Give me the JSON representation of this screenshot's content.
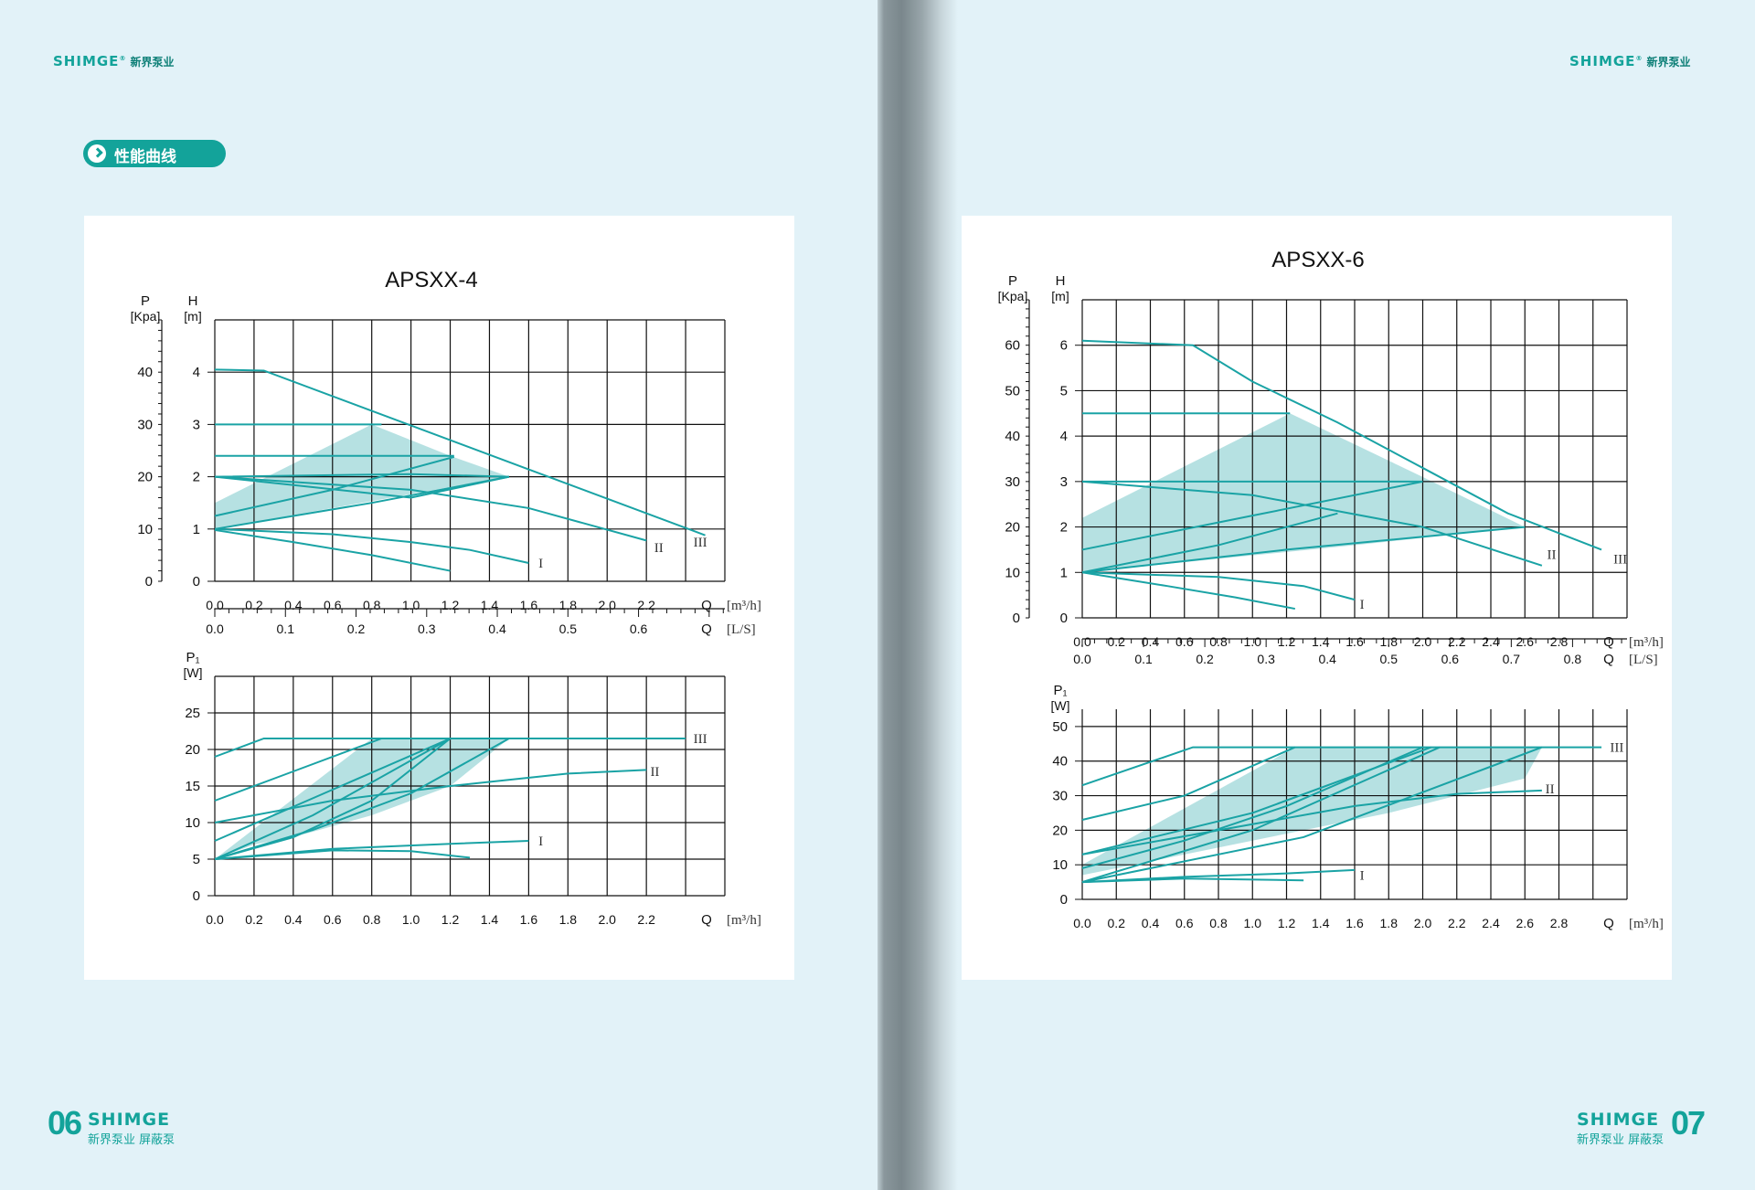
{
  "header": {
    "brand": "SHIMGE",
    "brand_cn": "新界泵业"
  },
  "section_title": "性能曲线",
  "footer": {
    "left_page_number": "06",
    "right_page_number": "07",
    "brand": "SHIMGE",
    "sub": "新界泵业 屏蔽泵"
  },
  "colors": {
    "curve": "#1aa3a5",
    "fill": "#a9dcdd",
    "grid": "#111111",
    "page_bg": "#e2f2f8"
  },
  "chart_data": [
    {
      "type": "line",
      "title": "APSXX-4",
      "head_chart": {
        "y_left_label": "P",
        "y_left_unit": "[Kpa]",
        "y_left_ticks": [
          "0",
          "10",
          "20",
          "30",
          "40"
        ],
        "y_label": "H",
        "y_unit": "[m]",
        "ylim": [
          0,
          5
        ],
        "y_ticks": [
          "0",
          "1",
          "2",
          "3",
          "4"
        ],
        "xlim": [
          0,
          2.6
        ],
        "x_ticks": [
          "0.0",
          "0.2",
          "0.4",
          "0.6",
          "0.8",
          "1.0",
          "1.2",
          "1.4",
          "1.6",
          "1.8",
          "2.0",
          "2.2"
        ],
        "x_label": "Q",
        "x_unit": "[m³/h]",
        "x2_ticks": [
          "0.0",
          "0.1",
          "0.2",
          "0.3",
          "0.4",
          "0.5",
          "0.6"
        ],
        "x2_label": "Q",
        "x2_unit": "[L/S]",
        "speed_labels": [
          {
            "text": "I",
            "x": 1.65,
            "y": 0.35
          },
          {
            "text": "II",
            "x": 2.24,
            "y": 0.65
          },
          {
            "text": "III",
            "x": 2.44,
            "y": 0.75
          }
        ],
        "series": [
          {
            "name": "III",
            "x": [
              0,
              0.25,
              2.5
            ],
            "y": [
              4.05,
              4.03,
              0.88
            ]
          },
          {
            "name": "II",
            "x": [
              0,
              1.0,
              1.6,
              2.2
            ],
            "y": [
              2.0,
              1.75,
              1.4,
              0.78
            ]
          },
          {
            "name": "I",
            "x": [
              0,
              0.6,
              1.0,
              1.3,
              1.6
            ],
            "y": [
              1.0,
              0.9,
              0.75,
              0.6,
              0.35
            ]
          },
          {
            "x": [
              0,
              0.4,
              0.8,
              1.2
            ],
            "y": [
              0.98,
              0.75,
              0.5,
              0.2
            ]
          },
          {
            "x": [
              0,
              0.85
            ],
            "y": [
              3.0,
              3.0
            ]
          },
          {
            "x": [
              0,
              1.22
            ],
            "y": [
              2.4,
              2.4
            ]
          },
          {
            "x": [
              0,
              1.0,
              1.5
            ],
            "y": [
              2.0,
              2.05,
              2.0
            ]
          },
          {
            "x": [
              0,
              0.6,
              1.22
            ],
            "y": [
              1.25,
              1.75,
              2.38
            ]
          },
          {
            "x": [
              0,
              0.8,
              1.5
            ],
            "y": [
              1.0,
              1.5,
              2.0
            ]
          },
          {
            "x": [
              0,
              0.5,
              1.0,
              1.5
            ],
            "y": [
              2.0,
              1.8,
              1.6,
              2.0
            ]
          }
        ],
        "area": {
          "x": [
            0,
            0.8,
            1.2,
            1.5,
            1.2,
            0.6,
            0
          ],
          "y": [
            1.5,
            3.0,
            2.4,
            2.0,
            1.8,
            1.4,
            1.0
          ]
        }
      },
      "power_chart": {
        "y_label": "P₁",
        "y_unit": "[W]",
        "ylim": [
          0,
          30
        ],
        "y_ticks": [
          "0",
          "5",
          "10",
          "15",
          "20",
          "25"
        ],
        "xlim": [
          0,
          2.6
        ],
        "x_ticks": [
          "0.0",
          "0.2",
          "0.4",
          "0.6",
          "0.8",
          "1.0",
          "1.2",
          "1.4",
          "1.6",
          "1.8",
          "2.0",
          "2.2"
        ],
        "x_label": "Q",
        "x_unit": "[m³/h]",
        "speed_labels": [
          {
            "text": "III",
            "x": 2.44,
            "y": 21.5
          },
          {
            "text": "II",
            "x": 2.22,
            "y": 17.0
          },
          {
            "text": "I",
            "x": 1.65,
            "y": 7.5
          }
        ],
        "series": [
          {
            "name": "III",
            "x": [
              0,
              0.25,
              2.4
            ],
            "y": [
              19,
              21.5,
              21.5
            ]
          },
          {
            "name": "II",
            "x": [
              0,
              0.6,
              1.2,
              1.8,
              2.2
            ],
            "y": [
              10,
              13.0,
              15.0,
              16.7,
              17.2
            ]
          },
          {
            "name": "I",
            "x": [
              0,
              0.6,
              1.2,
              1.6
            ],
            "y": [
              5,
              6.4,
              7.1,
              7.5
            ]
          },
          {
            "x": [
              0,
              0.6,
              1.0,
              1.3
            ],
            "y": [
              5,
              6.2,
              6.1,
              5.2
            ]
          },
          {
            "x": [
              0,
              0.4,
              0.85
            ],
            "y": [
              13,
              17,
              21.5
            ]
          },
          {
            "x": [
              0,
              0.6,
              1.2
            ],
            "y": [
              7.5,
              14.5,
              21.5
            ]
          },
          {
            "x": [
              0,
              0.5,
              1.0,
              1.5
            ],
            "y": [
              5,
              9,
              14,
              21.5
            ]
          },
          {
            "x": [
              0,
              0.4,
              0.8,
              1.2
            ],
            "y": [
              5,
              8,
              13,
              21.5
            ]
          },
          {
            "x": [
              0,
              0.5,
              1.2
            ],
            "y": [
              5,
              11,
              21.5
            ]
          }
        ],
        "area": {
          "x": [
            0,
            0.8,
            1.5,
            1.2,
            0.8,
            0.4,
            0.2,
            0
          ],
          "y": [
            5,
            21.5,
            21.5,
            15,
            11,
            8,
            7,
            5
          ]
        }
      }
    },
    {
      "type": "line",
      "title": "APSXX-6",
      "head_chart": {
        "y_left_label": "P",
        "y_left_unit": "[Kpa]",
        "y_left_ticks": [
          "0",
          "10",
          "20",
          "30",
          "40",
          "50",
          "60"
        ],
        "y_label": "H",
        "y_unit": "[m]",
        "ylim": [
          0,
          7
        ],
        "y_ticks": [
          "0",
          "1",
          "2",
          "3",
          "4",
          "5",
          "6"
        ],
        "xlim": [
          0,
          3.2
        ],
        "x_ticks": [
          "0.0",
          "0.2",
          "0.4",
          "0.6",
          "0.8",
          "1.0",
          "1.2",
          "1.4",
          "1.6",
          "1.8",
          "2.0",
          "2.2",
          "2.4",
          "2.6",
          "2.8"
        ],
        "x_label": "Q",
        "x_unit": "[m³/h]",
        "x2_ticks": [
          "0.0",
          "0.1",
          "0.2",
          "0.3",
          "0.4",
          "0.5",
          "0.6",
          "0.7",
          "0.8"
        ],
        "x2_label": "Q",
        "x2_unit": "[L/S]",
        "speed_labels": [
          {
            "text": "I",
            "x": 1.63,
            "y": 0.3
          },
          {
            "text": "II",
            "x": 2.73,
            "y": 1.4
          },
          {
            "text": "III",
            "x": 3.12,
            "y": 1.3
          }
        ],
        "series": [
          {
            "name": "III",
            "x": [
              0,
              0.65,
              1.0,
              1.5,
              2.0,
              2.5,
              3.05
            ],
            "y": [
              6.1,
              6.0,
              5.2,
              4.3,
              3.3,
              2.3,
              1.5
            ]
          },
          {
            "name": "II",
            "x": [
              0,
              1.0,
              2.0,
              2.7
            ],
            "y": [
              3.0,
              2.7,
              2.0,
              1.15
            ]
          },
          {
            "name": "I",
            "x": [
              0,
              0.8,
              1.3,
              1.6
            ],
            "y": [
              1.0,
              0.9,
              0.7,
              0.4
            ]
          },
          {
            "x": [
              0,
              0.5,
              0.9,
              1.25
            ],
            "y": [
              1.0,
              0.7,
              0.45,
              0.2
            ]
          },
          {
            "x": [
              0,
              1.22
            ],
            "y": [
              4.5,
              4.5
            ]
          },
          {
            "x": [
              0,
              2.0
            ],
            "y": [
              3.0,
              3.0
            ]
          },
          {
            "x": [
              0,
              1.0,
              2.0
            ],
            "y": [
              1.5,
              2.25,
              3.0
            ]
          },
          {
            "x": [
              0,
              1.2,
              2.6
            ],
            "y": [
              1.0,
              1.5,
              2.0
            ]
          },
          {
            "x": [
              0,
              0.8,
              1.5
            ],
            "y": [
              1.0,
              1.6,
              2.3
            ]
          }
        ],
        "area": {
          "x": [
            0,
            1.22,
            2.0,
            2.6,
            1.6,
            0.8,
            0
          ],
          "y": [
            2.2,
            4.5,
            3.1,
            2.0,
            1.6,
            1.3,
            1.0
          ]
        }
      },
      "power_chart": {
        "y_label": "P₁",
        "y_unit": "[W]",
        "ylim": [
          0,
          55
        ],
        "y_ticks": [
          "0",
          "10",
          "20",
          "30",
          "40",
          "50"
        ],
        "xlim": [
          0,
          3.2
        ],
        "x_ticks": [
          "0.0",
          "0.2",
          "0.4",
          "0.6",
          "0.8",
          "1.0",
          "1.2",
          "1.4",
          "1.6",
          "1.8",
          "2.0",
          "2.2",
          "2.4",
          "2.6",
          "2.8"
        ],
        "x_label": "Q",
        "x_unit": "[m³/h]",
        "speed_labels": [
          {
            "text": "III",
            "x": 3.1,
            "y": 44
          },
          {
            "text": "II",
            "x": 2.72,
            "y": 32
          },
          {
            "text": "I",
            "x": 1.63,
            "y": 7
          }
        ],
        "series": [
          {
            "name": "III",
            "x": [
              0,
              0.65,
              3.05
            ],
            "y": [
              33,
              44,
              44
            ]
          },
          {
            "name": "II",
            "x": [
              0,
              0.8,
              1.6,
              2.2,
              2.7
            ],
            "y": [
              13,
              20,
              27,
              30.5,
              31.5
            ]
          },
          {
            "name": "I",
            "x": [
              0,
              0.6,
              1.2,
              1.6
            ],
            "y": [
              5,
              6.5,
              7.5,
              8.5
            ]
          },
          {
            "x": [
              0,
              0.6,
              1.3
            ],
            "y": [
              5,
              6.0,
              5.5
            ]
          },
          {
            "x": [
              0,
              0.6,
              1.25
            ],
            "y": [
              23,
              30,
              44
            ]
          },
          {
            "x": [
              0,
              1.0,
              2.05
            ],
            "y": [
              13,
              25,
              44
            ]
          },
          {
            "x": [
              0,
              1.0,
              2.1
            ],
            "y": [
              5,
              20,
              44
            ]
          },
          {
            "x": [
              0,
              1.3,
              2.7
            ],
            "y": [
              5,
              18,
              44
            ]
          },
          {
            "x": [
              0,
              0.6,
              1.2,
              2.0
            ],
            "y": [
              9,
              17,
              27,
              44
            ]
          }
        ],
        "area": {
          "x": [
            0,
            1.25,
            2.7,
            2.6,
            1.8,
            1.0,
            0
          ],
          "y": [
            10,
            44,
            44,
            35,
            25,
            17,
            7
          ]
        }
      }
    }
  ]
}
